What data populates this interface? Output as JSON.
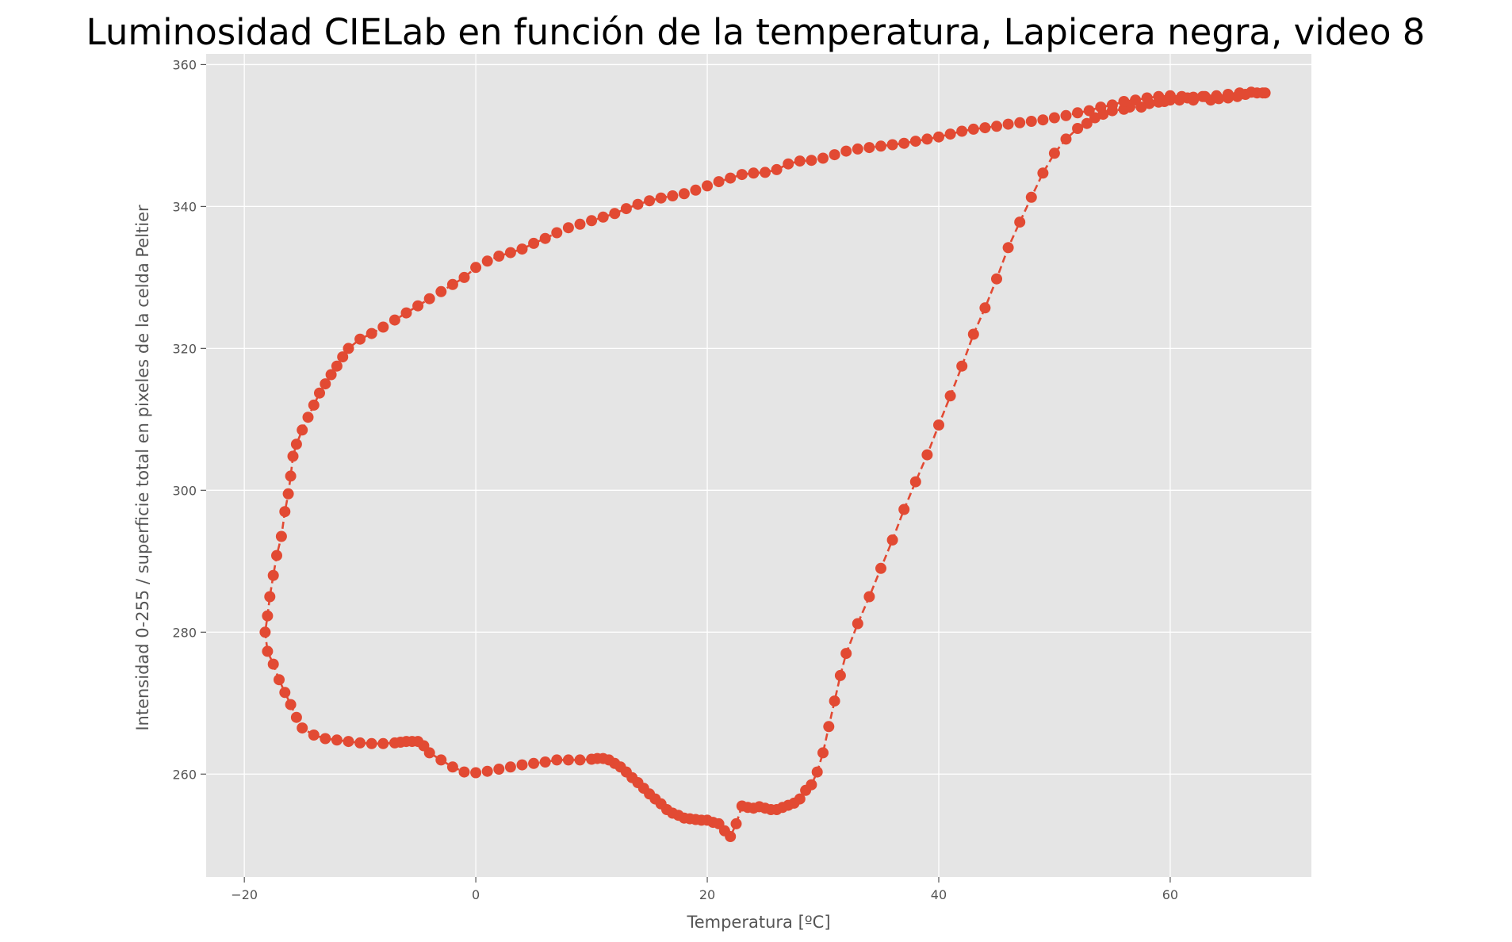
{
  "chart_data": {
    "type": "line",
    "title": "Luminosidad CIELab en función de la temperatura, Lapicera negra, video 8",
    "xlabel": "Temperatura [ºC]",
    "ylabel": "Intensidad 0-255 / superficie total en pixeles de la celda Peltier",
    "xlim": [
      -23.3,
      72.2
    ],
    "ylim": [
      245.5,
      361.5
    ],
    "xticks": [
      -20,
      0,
      20,
      40,
      60
    ],
    "yticks": [
      260,
      280,
      300,
      320,
      340,
      360
    ],
    "xtick_labels": [
      "−20",
      "0",
      "20",
      "40",
      "60"
    ],
    "ytick_labels": [
      "260",
      "280",
      "300",
      "320",
      "340",
      "360"
    ],
    "grid": true,
    "style": "ggplot",
    "colors": {
      "series": "#e24a33",
      "plot_background": "#e5e5e5",
      "grid": "#ffffff",
      "text": "#555555"
    },
    "series": [
      {
        "name": "Lapicera negra, video 8",
        "marker": "circle",
        "linestyle": "dashed",
        "x": [
          68.2,
          67.5,
          66.5,
          65.8,
          65.0,
          64.2,
          63.5,
          62.8,
          62.0,
          61.5,
          60.8,
          60.0,
          59.5,
          59.0,
          58.2,
          57.5,
          56.5,
          56.0,
          55.0,
          54.2,
          53.5,
          52.8,
          52.0,
          51.0,
          50.0,
          49.0,
          48.0,
          47.0,
          46.0,
          45.0,
          44.0,
          43.0,
          42.0,
          41.0,
          40.0,
          39.0,
          38.0,
          37.0,
          36.0,
          35.0,
          34.0,
          33.0,
          32.0,
          31.5,
          31.0,
          30.5,
          30.0,
          29.5,
          29.0,
          28.5,
          28.0,
          27.5,
          27.0,
          26.5,
          26.0,
          25.5,
          25.0,
          24.5,
          24.0,
          23.5,
          23.0,
          22.5,
          22.0,
          21.5,
          21.0,
          20.5,
          20.0,
          19.5,
          19.0,
          18.5,
          18.0,
          17.5,
          17.0,
          16.5,
          16.0,
          15.5,
          15.0,
          14.5,
          14.0,
          13.5,
          13.0,
          12.5,
          12.0,
          11.5,
          11.0,
          10.5,
          10.0,
          9.0,
          8.0,
          7.0,
          6.0,
          5.0,
          4.0,
          3.0,
          2.0,
          1.0,
          0.0,
          -1.0,
          -2.0,
          -3.0,
          -4.0,
          -4.5,
          -5.0,
          -5.5,
          -6.0,
          -6.5,
          -7.0,
          -8.0,
          -9.0,
          -10.0,
          -11.0,
          -12.0,
          -13.0,
          -14.0,
          -15.0,
          -15.5,
          -16.0,
          -16.5,
          -17.0,
          -17.5,
          -18.0,
          -18.2,
          -18.0,
          -17.8,
          -17.5,
          -17.2,
          -16.8,
          -16.5,
          -16.2,
          -16.0,
          -15.8,
          -15.5,
          -15.0,
          -14.5,
          -14.0,
          -13.5,
          -13.0,
          -12.5,
          -12.0,
          -11.5,
          -11.0,
          -10.0,
          -9.0,
          -8.0,
          -7.0,
          -6.0,
          -5.0,
          -4.0,
          -3.0,
          -2.0,
          -1.0,
          0.0,
          1.0,
          2.0,
          3.0,
          4.0,
          5.0,
          6.0,
          7.0,
          8.0,
          9.0,
          10.0,
          11.0,
          12.0,
          13.0,
          14.0,
          15.0,
          16.0,
          17.0,
          18.0,
          19.0,
          20.0,
          21.0,
          22.0,
          23.0,
          24.0,
          25.0,
          26.0,
          27.0,
          28.0,
          29.0,
          30.0,
          31.0,
          32.0,
          33.0,
          34.0,
          35.0,
          36.0,
          37.0,
          38.0,
          39.0,
          40.0,
          41.0,
          42.0,
          43.0,
          44.0,
          45.0,
          46.0,
          47.0,
          48.0,
          49.0,
          50.0,
          51.0,
          52.0,
          53.0,
          54.0,
          55.0,
          56.0,
          57.0,
          58.0,
          59.0,
          60.0,
          61.0,
          62.0,
          63.0,
          64.0,
          65.0,
          66.0,
          67.0,
          68.0
        ],
        "y": [
          356.0,
          356.0,
          355.8,
          355.5,
          355.3,
          355.2,
          355.0,
          355.5,
          355.0,
          355.3,
          355.0,
          355.0,
          354.8,
          354.7,
          354.5,
          354.0,
          354.0,
          353.7,
          353.5,
          353.0,
          352.5,
          351.7,
          351.0,
          349.5,
          347.5,
          344.7,
          341.3,
          337.8,
          334.2,
          329.8,
          325.7,
          322.0,
          317.5,
          313.3,
          309.2,
          305.0,
          301.2,
          297.3,
          293.0,
          289.0,
          285.0,
          281.2,
          277.0,
          273.9,
          270.3,
          266.7,
          263.0,
          260.3,
          258.5,
          257.7,
          256.5,
          255.9,
          255.6,
          255.3,
          255.0,
          255.0,
          255.2,
          255.4,
          255.2,
          255.3,
          255.5,
          253.0,
          251.2,
          252.0,
          253.0,
          253.2,
          253.5,
          253.5,
          253.6,
          253.7,
          253.8,
          254.2,
          254.5,
          255.0,
          255.8,
          256.5,
          257.2,
          258.0,
          258.8,
          259.5,
          260.3,
          261.0,
          261.5,
          262.0,
          262.2,
          262.2,
          262.1,
          262.0,
          262.0,
          262.0,
          261.7,
          261.5,
          261.3,
          261.0,
          260.7,
          260.4,
          260.2,
          260.3,
          261.0,
          262.0,
          263.0,
          264.0,
          264.6,
          264.6,
          264.6,
          264.5,
          264.4,
          264.3,
          264.3,
          264.4,
          264.6,
          264.8,
          265.0,
          265.5,
          266.5,
          268.0,
          269.8,
          271.5,
          273.3,
          275.5,
          277.3,
          280.0,
          282.3,
          285.0,
          288.0,
          290.8,
          293.5,
          297.0,
          299.5,
          302.0,
          304.8,
          306.5,
          308.5,
          310.3,
          312.0,
          313.7,
          315.0,
          316.3,
          317.5,
          318.8,
          320.0,
          321.3,
          322.1,
          323.0,
          324.0,
          325.0,
          326.0,
          327.0,
          328.0,
          329.0,
          330.0,
          331.4,
          332.3,
          333.0,
          333.5,
          334.0,
          334.8,
          335.5,
          336.3,
          337.0,
          337.5,
          338.0,
          338.5,
          339.0,
          339.7,
          340.3,
          340.8,
          341.2,
          341.5,
          341.8,
          342.3,
          342.9,
          343.5,
          344.0,
          344.5,
          344.7,
          344.8,
          345.2,
          346.0,
          346.4,
          346.5,
          346.8,
          347.3,
          347.8,
          348.1,
          348.3,
          348.5,
          348.7,
          348.9,
          349.2,
          349.5,
          349.8,
          350.2,
          350.6,
          350.9,
          351.1,
          351.3,
          351.6,
          351.8,
          352.0,
          352.2,
          352.5,
          352.8,
          353.2,
          353.5,
          354.0,
          354.3,
          354.8,
          355.0,
          355.3,
          355.5,
          355.6,
          355.5,
          355.4,
          355.5,
          355.6,
          355.8,
          356.0,
          356.1,
          356.0
        ]
      }
    ]
  }
}
